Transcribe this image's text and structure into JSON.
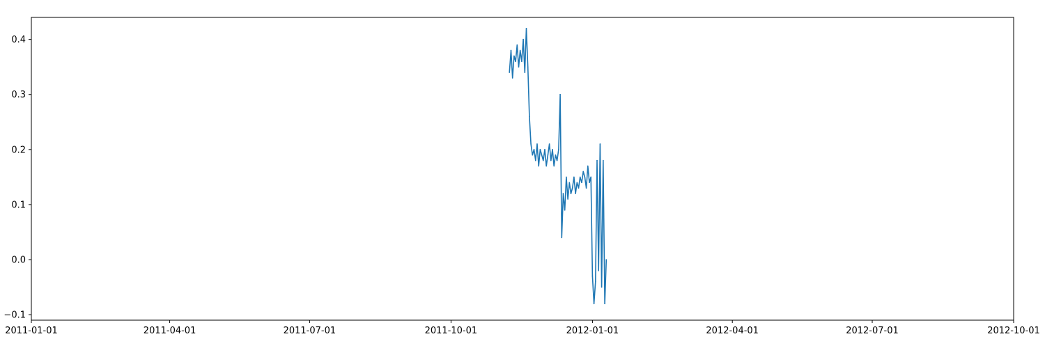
{
  "chart_data": {
    "type": "line",
    "title": "",
    "xlabel": "",
    "ylabel": "",
    "x_axis_kind": "date",
    "xlim": [
      "2011-01-01",
      "2012-10-01"
    ],
    "ylim": [
      -0.11,
      0.44
    ],
    "grid": false,
    "legend": "none",
    "x_ticks": [
      {
        "value": "2011-01-01",
        "label": "2011-01-01"
      },
      {
        "value": "2011-04-01",
        "label": "2011-04-01"
      },
      {
        "value": "2011-07-01",
        "label": "2011-07-01"
      },
      {
        "value": "2011-10-01",
        "label": "2011-10-01"
      },
      {
        "value": "2012-01-01",
        "label": "2012-01-01"
      },
      {
        "value": "2012-04-01",
        "label": "2012-04-01"
      },
      {
        "value": "2012-07-01",
        "label": "2012-07-01"
      },
      {
        "value": "2012-10-01",
        "label": "2012-10-01"
      }
    ],
    "y_ticks": [
      {
        "value": -0.1,
        "label": "−0.1"
      },
      {
        "value": 0.0,
        "label": "0.0"
      },
      {
        "value": 0.1,
        "label": "0.1"
      },
      {
        "value": 0.2,
        "label": "0.2"
      },
      {
        "value": 0.3,
        "label": "0.3"
      },
      {
        "value": 0.4,
        "label": "0.4"
      }
    ],
    "series": [
      {
        "color": "#1f77b4",
        "x": [
          "2011-11-08",
          "2011-11-09",
          "2011-11-10",
          "2011-11-11",
          "2011-11-12",
          "2011-11-13",
          "2011-11-14",
          "2011-11-15",
          "2011-11-16",
          "2011-11-17",
          "2011-11-18",
          "2011-11-19",
          "2011-11-20",
          "2011-11-21",
          "2011-11-22",
          "2011-11-23",
          "2011-11-24",
          "2011-11-25",
          "2011-11-26",
          "2011-11-27",
          "2011-11-28",
          "2011-11-29",
          "2011-11-30",
          "2011-12-01",
          "2011-12-02",
          "2011-12-03",
          "2011-12-04",
          "2011-12-05",
          "2011-12-06",
          "2011-12-07",
          "2011-12-08",
          "2011-12-09",
          "2011-12-10",
          "2011-12-11",
          "2011-12-12",
          "2011-12-13",
          "2011-12-14",
          "2011-12-15",
          "2011-12-16",
          "2011-12-17",
          "2011-12-18",
          "2011-12-19",
          "2011-12-20",
          "2011-12-21",
          "2011-12-22",
          "2011-12-23",
          "2011-12-24",
          "2011-12-25",
          "2011-12-26",
          "2011-12-27",
          "2011-12-28",
          "2011-12-29",
          "2011-12-30",
          "2011-12-31",
          "2012-01-01",
          "2012-01-02",
          "2012-01-03",
          "2012-01-04",
          "2012-01-05",
          "2012-01-06",
          "2012-01-07",
          "2012-01-08",
          "2012-01-09",
          "2012-01-10"
        ],
        "y": [
          0.34,
          0.38,
          0.33,
          0.37,
          0.36,
          0.39,
          0.35,
          0.38,
          0.36,
          0.4,
          0.34,
          0.42,
          0.35,
          0.26,
          0.21,
          0.19,
          0.2,
          0.18,
          0.21,
          0.17,
          0.2,
          0.19,
          0.18,
          0.2,
          0.17,
          0.19,
          0.21,
          0.18,
          0.2,
          0.17,
          0.19,
          0.18,
          0.2,
          0.3,
          0.04,
          0.12,
          0.09,
          0.15,
          0.11,
          0.14,
          0.12,
          0.13,
          0.15,
          0.12,
          0.14,
          0.13,
          0.15,
          0.14,
          0.16,
          0.15,
          0.13,
          0.17,
          0.14,
          0.15,
          -0.03,
          -0.08,
          -0.04,
          0.18,
          -0.02,
          0.21,
          -0.05,
          0.18,
          -0.08,
          0.0
        ]
      }
    ]
  }
}
